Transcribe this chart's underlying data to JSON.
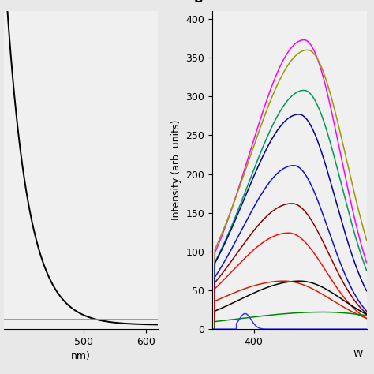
{
  "panel_A": {
    "xlim": [
      370,
      620
    ],
    "ylim_bottom": -0.05,
    "ylim_top": 3.8,
    "xticks": [
      500,
      600
    ],
    "yticks": [],
    "black_decay_start": 370,
    "black_decay_rate": 0.028,
    "black_amplitude": 4.5,
    "blue_level": 0.065,
    "blue_color": "#6688ff",
    "black_color": "#000000"
  },
  "panel_B": {
    "label": "B",
    "ylabel": "Intensity (arb. units)",
    "xlabel_partial": "W",
    "xlim": [
      352,
      530
    ],
    "ylim": [
      0,
      410
    ],
    "xticks": [
      400
    ],
    "yticks": [
      0,
      50,
      100,
      150,
      200,
      250,
      300,
      350,
      400
    ],
    "curves": [
      {
        "color": "#ff00ff",
        "peak_x": 458,
        "peak_y": 373,
        "sigma": 42,
        "rise_from": 355,
        "skew": 0.5
      },
      {
        "color": "#999900",
        "peak_x": 462,
        "peak_y": 360,
        "sigma": 45,
        "rise_from": 355,
        "skew": 0.5
      },
      {
        "color": "#009955",
        "peak_x": 458,
        "peak_y": 308,
        "sigma": 43,
        "rise_from": 355,
        "skew": 0.5
      },
      {
        "color": "#000099",
        "peak_x": 452,
        "peak_y": 277,
        "sigma": 42,
        "rise_from": 355,
        "skew": 0.5
      },
      {
        "color": "#1111cc",
        "peak_x": 446,
        "peak_y": 211,
        "sigma": 40,
        "rise_from": 355,
        "skew": 0.5
      },
      {
        "color": "#880000",
        "peak_x": 444,
        "peak_y": 162,
        "sigma": 42,
        "rise_from": 355,
        "skew": 0.5
      },
      {
        "color": "#ee1111",
        "peak_x": 440,
        "peak_y": 124,
        "sigma": 43,
        "rise_from": 355,
        "skew": 0.5
      },
      {
        "color": "#000000",
        "peak_x": 453,
        "peak_y": 62,
        "sigma": 50,
        "rise_from": 355,
        "skew": 0.4
      },
      {
        "color": "#cc2200",
        "peak_x": 435,
        "peak_y": 62,
        "sigma": 55,
        "rise_from": 355,
        "skew": 0.4
      },
      {
        "color": "#008800",
        "peak_x": 480,
        "peak_y": 22,
        "sigma": 75,
        "rise_from": 355,
        "skew": 0.3
      },
      {
        "color": "#3333ff",
        "peak_x": 390,
        "peak_y": 20,
        "sigma": 7,
        "rise_from": 380,
        "skew": 0.0
      }
    ]
  },
  "fig_facecolor": "#e8e8e8",
  "axes_facecolor": "#f0f0f0",
  "fontsize_tick": 9,
  "fontsize_label": 9,
  "fontsize_panel_label": 11
}
